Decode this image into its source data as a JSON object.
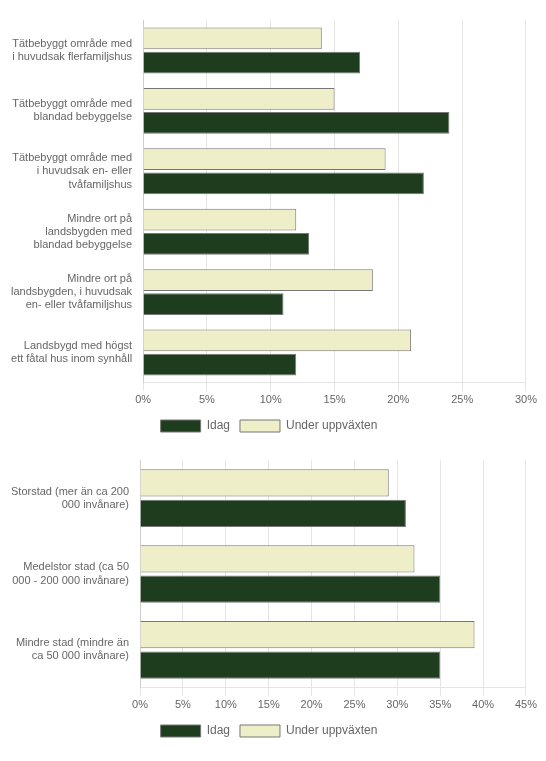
{
  "chart_data": [
    {
      "type": "bar",
      "orientation": "horizontal",
      "categories": [
        "Tätbebyggt område med\ni huvudsak flerfamiljshus",
        "Tätbebyggt område med\nblandad bebyggelse",
        "Tätbebyggt område med\ni huvudsak en- eller\ntvåfamiljshus",
        "Mindre ort på\nlandsbygden med\nblandad bebyggelse",
        "Mindre ort på\nlandsbygden, i huvudsak\nen- eller tvåfamiljshus",
        "Landsbygd med högst\nett fåtal hus inom synhåll"
      ],
      "series": [
        {
          "name": "Under uppväxten",
          "color": "#eeeec8",
          "values": [
            14,
            15,
            19,
            12,
            18,
            21
          ]
        },
        {
          "name": "Idag",
          "color": "#1e3d1e",
          "values": [
            17,
            24,
            22,
            13,
            11,
            12
          ]
        }
      ],
      "xlim": [
        0,
        30
      ],
      "xticks": [
        {
          "value": 0,
          "label": "0%"
        },
        {
          "value": 5,
          "label": "5%"
        },
        {
          "value": 10,
          "label": "10%"
        },
        {
          "value": 15,
          "label": "15%"
        },
        {
          "value": 20,
          "label": "20%"
        },
        {
          "value": 25,
          "label": "25%"
        },
        {
          "value": 30,
          "label": "30%"
        }
      ],
      "grid": true,
      "legend": "bottom"
    },
    {
      "type": "bar",
      "orientation": "horizontal",
      "categories": [
        "Storstad (mer än ca 200\n000 invånare)",
        "Medelstor stad (ca 50\n000 - 200 000 invånare)",
        "Mindre stad (mindre än\nca 50 000 invånare)"
      ],
      "series": [
        {
          "name": "Under uppväxten",
          "color": "#eeeec8",
          "values": [
            29,
            32,
            39
          ]
        },
        {
          "name": "Idag",
          "color": "#1e3d1e",
          "values": [
            31,
            35,
            35
          ]
        }
      ],
      "xlim": [
        0,
        45
      ],
      "xticks": [
        {
          "value": 0,
          "label": "0%"
        },
        {
          "value": 5,
          "label": "5%"
        },
        {
          "value": 10,
          "label": "10%"
        },
        {
          "value": 15,
          "label": "15%"
        },
        {
          "value": 20,
          "label": "20%"
        },
        {
          "value": 25,
          "label": "25%"
        },
        {
          "value": 30,
          "label": "30%"
        },
        {
          "value": 35,
          "label": "35%"
        },
        {
          "value": 40,
          "label": "40%"
        },
        {
          "value": 45,
          "label": "45%"
        }
      ],
      "grid": true,
      "legend": "bottom"
    }
  ]
}
